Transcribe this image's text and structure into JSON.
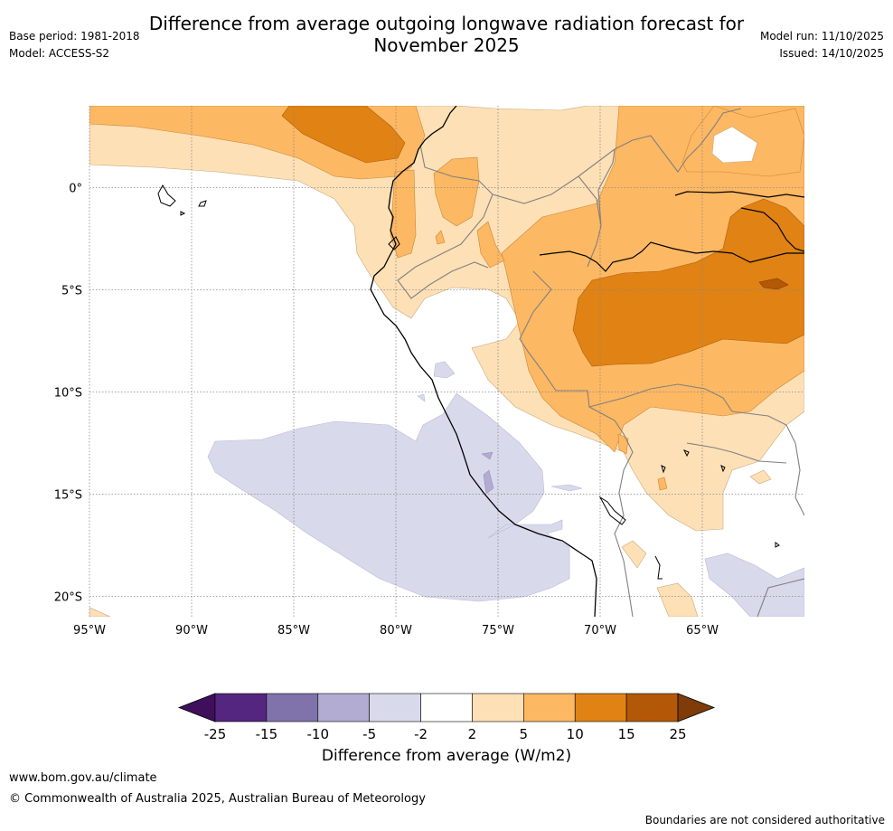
{
  "header": {
    "title": "Difference from average outgoing longwave radiation forecast for\nNovember 2025",
    "base_period": "Base period: 1981-2018",
    "model": "Model: ACCESS-S2",
    "model_run": "Model run: 11/10/2025",
    "issued": "Issued: 14/10/2025"
  },
  "map": {
    "lat_labels": [
      "0°",
      "5°S",
      "10°S",
      "15°S",
      "20°S"
    ],
    "lon_labels": [
      "95°W",
      "90°W",
      "85°W",
      "80°W",
      "75°W",
      "70°W",
      "65°W"
    ],
    "lat_values": [
      0,
      -5,
      -10,
      -15,
      -20
    ],
    "lon_values": [
      -95,
      -90,
      -85,
      -80,
      -75,
      -70,
      -65
    ],
    "extent": {
      "lon": [
        -95,
        -60
      ],
      "lat": [
        -21,
        4
      ]
    }
  },
  "legend": {
    "label": "Difference from average (W/m2)",
    "ticks": [
      "-25",
      "-15",
      "-10",
      "-5",
      "-2",
      "2",
      "5",
      "10",
      "15",
      "25"
    ],
    "colors": [
      "#3f0f5c",
      "#54267f",
      "#8073ac",
      "#b2abd2",
      "#d8daeb",
      "#ffffff",
      "#fee0b6",
      "#fdb863",
      "#e08214",
      "#b35806",
      "#7f3b08"
    ]
  },
  "footer": {
    "website": "www.bom.gov.au/climate",
    "copyright": "© Commonwealth of Australia 2025, Australian Bureau of Meteorology",
    "disclaimer": "Boundaries are not considered authoritative"
  }
}
